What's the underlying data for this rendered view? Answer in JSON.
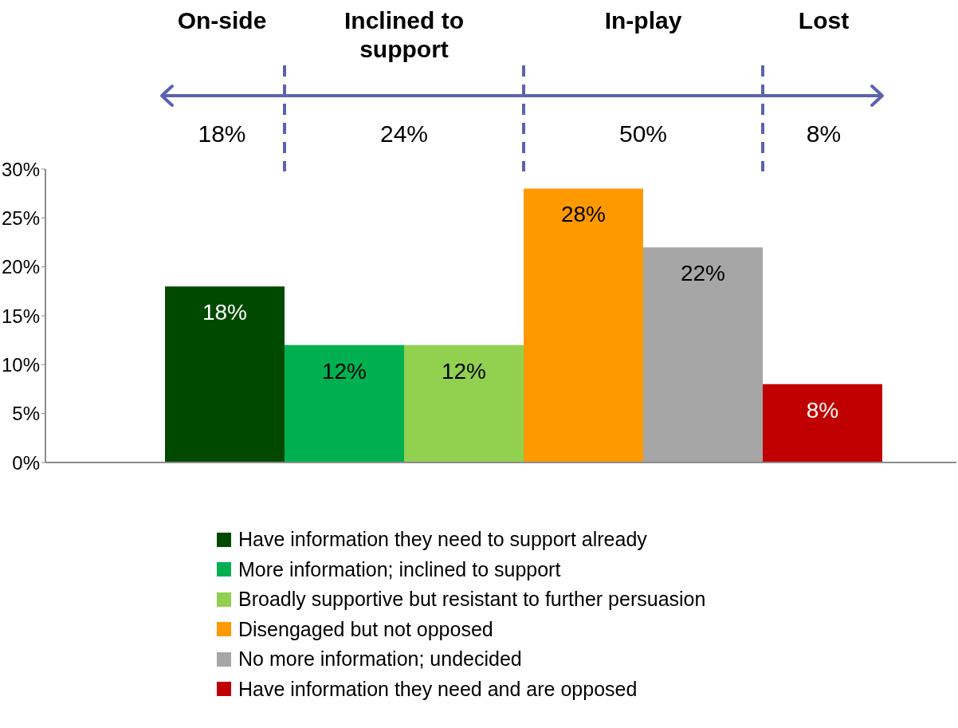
{
  "chart_data": {
    "type": "bar",
    "categories": [
      null,
      null,
      null,
      null,
      null,
      null
    ],
    "stacked": true,
    "series": [
      {
        "name": "Have information they need to support already",
        "color": "#004a00",
        "values": [
          18,
          null,
          null,
          null,
          null,
          null
        ],
        "value_labels": [
          "18%",
          null,
          null,
          null,
          null,
          null
        ]
      },
      {
        "name": "More information; inclined to support",
        "color": "#00b050",
        "values": [
          null,
          12,
          null,
          null,
          null,
          null
        ],
        "value_labels": [
          null,
          "12%",
          null,
          null,
          null,
          null
        ]
      },
      {
        "name": "Broadly supportive but resistant to further persuasion",
        "color": "#92d050",
        "values": [
          null,
          null,
          12,
          null,
          null,
          null
        ],
        "value_labels": [
          null,
          null,
          "12%",
          null,
          null,
          null
        ]
      },
      {
        "name": "Disengaged but not opposed",
        "color": "#ff9900",
        "values": [
          null,
          null,
          null,
          28,
          null,
          null
        ],
        "value_labels": [
          null,
          null,
          null,
          "28%",
          null,
          null
        ]
      },
      {
        "name": "No more information; undecided",
        "color": "#a6a6a6",
        "values": [
          null,
          null,
          null,
          null,
          22,
          null
        ],
        "value_labels": [
          null,
          null,
          null,
          null,
          "22%",
          null
        ]
      },
      {
        "name": "Have information they need and are opposed",
        "color": "#c00000",
        "values": [
          null,
          null,
          null,
          null,
          null,
          8
        ],
        "value_labels": [
          null,
          null,
          null,
          null,
          null,
          "8%"
        ]
      }
    ],
    "ylim": [
      0,
      30
    ],
    "yticks": [
      {
        "value": 0,
        "label": "0%"
      },
      {
        "value": 5,
        "label": "5%"
      },
      {
        "value": 10,
        "label": "10%"
      },
      {
        "value": 15,
        "label": "15%"
      },
      {
        "value": 20,
        "label": "20%"
      },
      {
        "value": 25,
        "label": "25%"
      },
      {
        "value": 30,
        "label": "30%"
      }
    ],
    "grid": false,
    "legend": "bottom",
    "annotations": [
      "On-side",
      "Inclined to support",
      "In-play",
      "Lost",
      "18%",
      "24%",
      "50%",
      "8%"
    ]
  }
}
